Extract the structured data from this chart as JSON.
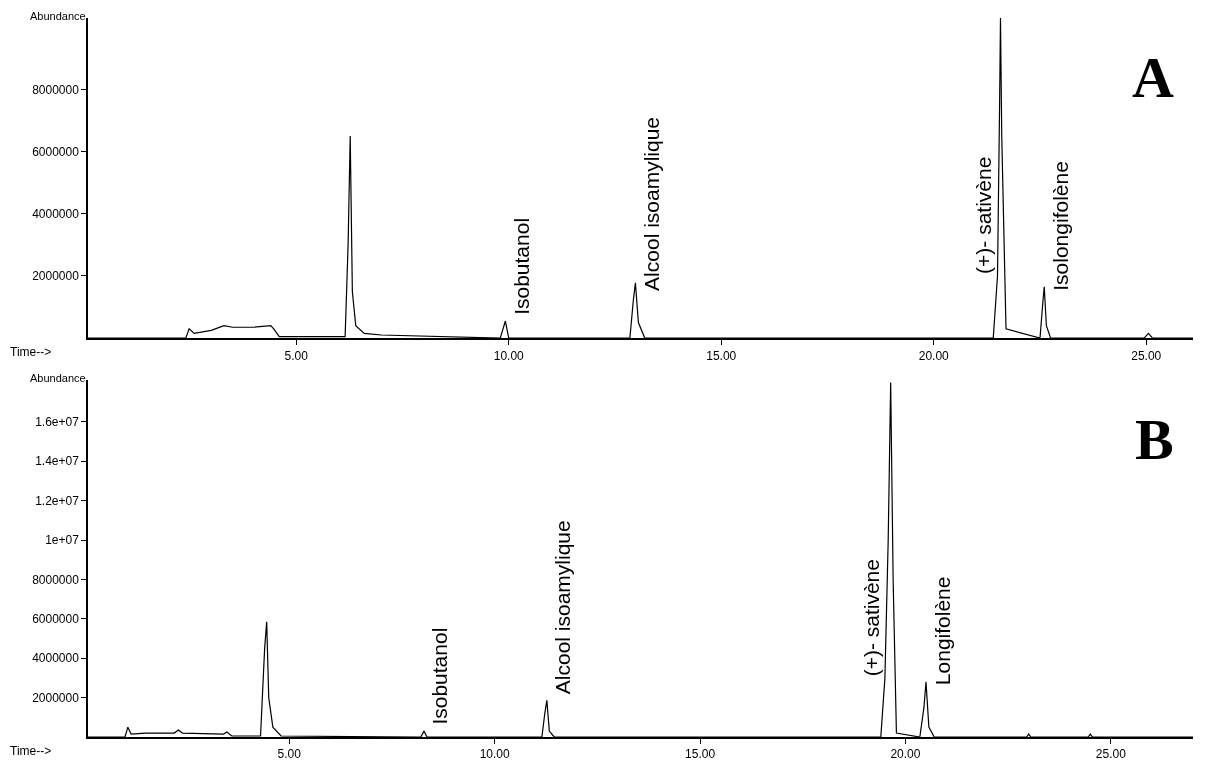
{
  "chart_data": [
    {
      "type": "line",
      "xlabel": "Time-->",
      "ylabel": "Abundance",
      "xlim": [
        0.1,
        26.1
      ],
      "ylim": [
        0,
        10300000
      ],
      "xticks": [
        {
          "value": 5,
          "label": "5.00"
        },
        {
          "value": 10,
          "label": "10.00"
        },
        {
          "value": 15,
          "label": "15.00"
        },
        {
          "value": 20,
          "label": "20.00"
        },
        {
          "value": 25,
          "label": "25.00"
        }
      ],
      "yticks": [
        2000000,
        4000000,
        6000000,
        8000000
      ],
      "marker": "none",
      "line_style": "solid",
      "series": [
        {
          "color": "#000000",
          "x": [
            0.1,
            2.4,
            2.48,
            2.6,
            3.0,
            3.3,
            3.5,
            4.0,
            4.4,
            4.47,
            4.6,
            5.5,
            6.15,
            6.22,
            6.27,
            6.32,
            6.4,
            6.6,
            7.0,
            9.8,
            9.92,
            10.0,
            12.85,
            12.93,
            12.98,
            13.05,
            13.2,
            21.4,
            21.5,
            21.55,
            21.57,
            21.6,
            21.7,
            22.5,
            22.57,
            22.6,
            22.65,
            22.75,
            24.95,
            25.05,
            25.15,
            26.1
          ],
          "values": [
            0,
            0,
            300000,
            150000,
            250000,
            400000,
            350000,
            350000,
            400000,
            300000,
            50000,
            50000,
            50000,
            3000000,
            6500000,
            1500000,
            400000,
            150000,
            100000,
            0,
            550000,
            0,
            0,
            1200000,
            1780000,
            500000,
            0,
            0,
            2000000,
            7600000,
            10300000,
            6500000,
            300000,
            0,
            1200000,
            1650000,
            400000,
            0,
            0,
            150000,
            0,
            0
          ]
        }
      ],
      "annotations": [
        "A",
        {
          "text": "Isobutanol",
          "x": 9.92,
          "y": 550000
        },
        {
          "text": "Alcool isoamylique",
          "x": 12.98,
          "y": 1780000
        },
        {
          "text": "(+)- sativène",
          "x": 21.5,
          "y": 2000000
        },
        {
          "text": "Isolongifolène",
          "x": 22.6,
          "y": 1650000
        }
      ]
    },
    {
      "type": "line",
      "xlabel": "Time-->",
      "ylabel": "Abundance",
      "xlim": [
        0.1,
        27.0
      ],
      "ylim": [
        0,
        18100000
      ],
      "xticks": [
        {
          "value": 5,
          "label": "5.00"
        },
        {
          "value": 10,
          "label": "10.00"
        },
        {
          "value": 15,
          "label": "15.00"
        },
        {
          "value": 20,
          "label": "20.00"
        },
        {
          "value": 25,
          "label": "25.00"
        }
      ],
      "yticks": [
        2000000,
        4000000,
        6000000,
        8000000,
        {
          "value": 10000000,
          "label": "1e+07"
        },
        {
          "value": 12000000,
          "label": "1.2e+07"
        },
        {
          "value": 14000000,
          "label": "1.4e+07"
        },
        {
          "value": 16000000,
          "label": "1.6e+07"
        }
      ],
      "marker": "none",
      "line_style": "solid",
      "series": [
        {
          "color": "#000000",
          "x": [
            0.1,
            1.0,
            1.07,
            1.15,
            1.5,
            2.2,
            2.3,
            2.4,
            3.4,
            3.48,
            3.6,
            4.3,
            4.4,
            4.45,
            4.5,
            4.6,
            4.8,
            8.2,
            8.28,
            8.35,
            11.15,
            11.22,
            11.27,
            11.33,
            11.45,
            19.4,
            19.5,
            19.58,
            19.64,
            19.7,
            19.78,
            20.35,
            20.45,
            20.5,
            20.57,
            20.7,
            22.95,
            23.0,
            23.05,
            24.45,
            24.5,
            24.55,
            27.0
          ],
          "values": [
            0,
            0,
            500000,
            150000,
            200000,
            200000,
            350000,
            200000,
            150000,
            250000,
            50000,
            50000,
            4500000,
            5850000,
            2000000,
            500000,
            50000,
            0,
            300000,
            0,
            0,
            1200000,
            1860000,
            300000,
            0,
            0,
            3000000,
            10000000,
            18000000,
            8000000,
            200000,
            0,
            1500000,
            2800000,
            500000,
            0,
            0,
            150000,
            0,
            0,
            150000,
            0,
            0
          ]
        }
      ],
      "annotations": [
        "B",
        {
          "text": "Isobutanol",
          "x": 8.28,
          "y": 300000
        },
        {
          "text": "Alcool isoamylique",
          "x": 11.27,
          "y": 1860000
        },
        {
          "text": "(+)- sativène",
          "x": 19.5,
          "y": 3000000
        },
        {
          "text": "Longifolène",
          "x": 20.5,
          "y": 2800000
        }
      ]
    }
  ]
}
